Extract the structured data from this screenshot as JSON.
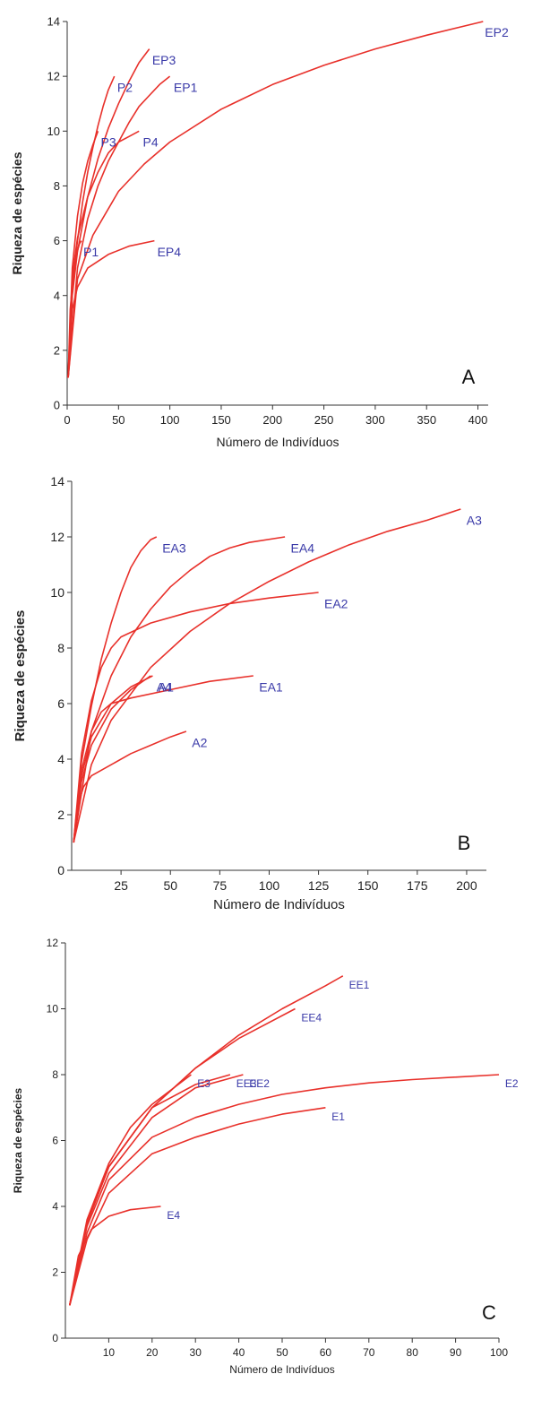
{
  "chart_data": [
    {
      "type": "line",
      "panel_letter": "A",
      "xlabel": "Número de Indivíduos",
      "ylabel": "Riqueza de espécies",
      "xlim": [
        0,
        410
      ],
      "ylim": [
        0,
        14
      ],
      "xticks": [
        0,
        50,
        100,
        150,
        200,
        250,
        300,
        350,
        400
      ],
      "yticks": [
        0,
        2,
        4,
        6,
        8,
        10,
        12,
        14
      ],
      "line_color": "#e8302a",
      "label_color": "#3a3aa8",
      "series": [
        {
          "name": "EP2",
          "points": [
            [
              1,
              1
            ],
            [
              10,
              4.6
            ],
            [
              25,
              6.2
            ],
            [
              50,
              7.8
            ],
            [
              75,
              8.8
            ],
            [
              100,
              9.6
            ],
            [
              150,
              10.8
            ],
            [
              200,
              11.7
            ],
            [
              250,
              12.4
            ],
            [
              300,
              13.0
            ],
            [
              350,
              13.5
            ],
            [
              405,
              14
            ]
          ]
        },
        {
          "name": "EP3",
          "points": [
            [
              1,
              1
            ],
            [
              5,
              4.0
            ],
            [
              10,
              5.6
            ],
            [
              20,
              7.6
            ],
            [
              30,
              9.0
            ],
            [
              40,
              10.1
            ],
            [
              50,
              11.0
            ],
            [
              60,
              11.8
            ],
            [
              70,
              12.5
            ],
            [
              80,
              13
            ]
          ]
        },
        {
          "name": "P2",
          "points": [
            [
              1,
              1
            ],
            [
              5,
              4.2
            ],
            [
              10,
              6.0
            ],
            [
              15,
              7.4
            ],
            [
              20,
              8.5
            ],
            [
              25,
              9.4
            ],
            [
              30,
              10.2
            ],
            [
              35,
              10.9
            ],
            [
              40,
              11.5
            ],
            [
              46,
              12
            ]
          ]
        },
        {
          "name": "EP1",
          "points": [
            [
              1,
              1
            ],
            [
              10,
              5.0
            ],
            [
              20,
              6.8
            ],
            [
              30,
              8.0
            ],
            [
              40,
              8.9
            ],
            [
              50,
              9.6
            ],
            [
              60,
              10.3
            ],
            [
              70,
              10.9
            ],
            [
              80,
              11.3
            ],
            [
              90,
              11.7
            ],
            [
              100,
              12
            ]
          ]
        },
        {
          "name": "P3",
          "points": [
            [
              1,
              1
            ],
            [
              5,
              5.0
            ],
            [
              10,
              6.9
            ],
            [
              15,
              8.1
            ],
            [
              20,
              8.9
            ],
            [
              25,
              9.5
            ],
            [
              30,
              10
            ]
          ]
        },
        {
          "name": "P4",
          "points": [
            [
              1,
              1
            ],
            [
              5,
              4.7
            ],
            [
              10,
              6.1
            ],
            [
              20,
              7.6
            ],
            [
              30,
              8.5
            ],
            [
              40,
              9.2
            ],
            [
              50,
              9.6
            ],
            [
              60,
              9.8
            ],
            [
              70,
              10
            ]
          ]
        },
        {
          "name": "EP4",
          "points": [
            [
              1,
              1
            ],
            [
              5,
              3.5
            ],
            [
              10,
              4.3
            ],
            [
              20,
              5.0
            ],
            [
              40,
              5.5
            ],
            [
              60,
              5.8
            ],
            [
              85,
              6
            ]
          ]
        },
        {
          "name": "P1",
          "points": [
            [
              1,
              1
            ],
            [
              3,
              3.5
            ],
            [
              6,
              4.8
            ],
            [
              9,
              5.5
            ],
            [
              12,
              5.9
            ],
            [
              14,
              6
            ]
          ]
        }
      ],
      "labels": [
        {
          "text": "EP2",
          "x": 405,
          "y": 13.6
        },
        {
          "text": "EP3",
          "x": 81,
          "y": 12.6
        },
        {
          "text": "P2",
          "x": 47,
          "y": 11.6
        },
        {
          "text": "EP1",
          "x": 102,
          "y": 11.6
        },
        {
          "text": "P3",
          "x": 31,
          "y": 9.6
        },
        {
          "text": "P4",
          "x": 72,
          "y": 9.6
        },
        {
          "text": "EP4",
          "x": 86,
          "y": 5.6
        },
        {
          "text": "P1",
          "x": 14,
          "y": 5.6
        }
      ]
    },
    {
      "type": "line",
      "panel_letter": "B",
      "xlabel": "Número de Indivíduos",
      "ylabel": "Riqueza de espécies",
      "xlim": [
        0,
        210
      ],
      "ylim": [
        0,
        14
      ],
      "xticks": [
        25,
        50,
        75,
        100,
        125,
        150,
        175,
        200
      ],
      "yticks": [
        0,
        2,
        4,
        6,
        8,
        10,
        12,
        14
      ],
      "line_color": "#e8302a",
      "label_color": "#3a3aa8",
      "series": [
        {
          "name": "A3",
          "points": [
            [
              1,
              1
            ],
            [
              10,
              3.8
            ],
            [
              20,
              5.4
            ],
            [
              40,
              7.3
            ],
            [
              60,
              8.6
            ],
            [
              80,
              9.6
            ],
            [
              100,
              10.4
            ],
            [
              120,
              11.1
            ],
            [
              140,
              11.7
            ],
            [
              160,
              12.2
            ],
            [
              180,
              12.6
            ],
            [
              197,
              13
            ]
          ]
        },
        {
          "name": "EA3",
          "points": [
            [
              1,
              1
            ],
            [
              5,
              3.9
            ],
            [
              10,
              5.9
            ],
            [
              15,
              7.6
            ],
            [
              20,
              8.9
            ],
            [
              25,
              10.0
            ],
            [
              30,
              10.9
            ],
            [
              35,
              11.5
            ],
            [
              40,
              11.9
            ],
            [
              43,
              12
            ]
          ]
        },
        {
          "name": "EA4",
          "points": [
            [
              1,
              1
            ],
            [
              10,
              5.0
            ],
            [
              20,
              7.0
            ],
            [
              30,
              8.4
            ],
            [
              40,
              9.4
            ],
            [
              50,
              10.2
            ],
            [
              60,
              10.8
            ],
            [
              70,
              11.3
            ],
            [
              80,
              11.6
            ],
            [
              90,
              11.8
            ],
            [
              108,
              12
            ]
          ]
        },
        {
          "name": "EA2",
          "points": [
            [
              1,
              1
            ],
            [
              5,
              4.2
            ],
            [
              10,
              6.1
            ],
            [
              15,
              7.3
            ],
            [
              20,
              8.0
            ],
            [
              25,
              8.4
            ],
            [
              40,
              8.9
            ],
            [
              60,
              9.3
            ],
            [
              80,
              9.6
            ],
            [
              100,
              9.8
            ],
            [
              125,
              10
            ]
          ]
        },
        {
          "name": "A1",
          "points": [
            [
              1,
              1
            ],
            [
              5,
              3.2
            ],
            [
              10,
              4.5
            ],
            [
              20,
              5.8
            ],
            [
              30,
              6.5
            ],
            [
              40,
              7
            ]
          ]
        },
        {
          "name": "A4",
          "points": [
            [
              1,
              1
            ],
            [
              5,
              3.4
            ],
            [
              10,
              4.8
            ],
            [
              20,
              6.0
            ],
            [
              30,
              6.6
            ],
            [
              41,
              7
            ]
          ]
        },
        {
          "name": "EA1",
          "points": [
            [
              1,
              1
            ],
            [
              5,
              3.6
            ],
            [
              10,
              5.0
            ],
            [
              15,
              5.7
            ],
            [
              20,
              6.0
            ],
            [
              30,
              6.2
            ],
            [
              50,
              6.5
            ],
            [
              70,
              6.8
            ],
            [
              92,
              7
            ]
          ]
        },
        {
          "name": "A2",
          "points": [
            [
              1,
              1
            ],
            [
              3,
              2.3
            ],
            [
              6,
              3.0
            ],
            [
              10,
              3.4
            ],
            [
              20,
              3.8
            ],
            [
              30,
              4.2
            ],
            [
              40,
              4.5
            ],
            [
              50,
              4.8
            ],
            [
              58,
              5
            ]
          ]
        }
      ],
      "labels": [
        {
          "text": "A3",
          "x": 199,
          "y": 12.6
        },
        {
          "text": "EA3",
          "x": 45,
          "y": 11.6
        },
        {
          "text": "EA4",
          "x": 110,
          "y": 11.6
        },
        {
          "text": "EA2",
          "x": 127,
          "y": 9.6
        },
        {
          "text": "A4",
          "x": 42,
          "y": 6.6
        },
        {
          "text": "A1",
          "x": 43,
          "y": 6.6
        },
        {
          "text": "EA1",
          "x": 94,
          "y": 6.6
        },
        {
          "text": "A2",
          "x": 60,
          "y": 4.6
        }
      ]
    },
    {
      "type": "line",
      "panel_letter": "C",
      "xlabel": "Número de Indivíduos",
      "ylabel": "Riqueza de espécies",
      "xlim": [
        0,
        100
      ],
      "ylim": [
        0,
        12
      ],
      "xticks": [
        10,
        20,
        30,
        40,
        50,
        60,
        70,
        80,
        90,
        100
      ],
      "yticks": [
        0,
        2,
        4,
        6,
        8,
        10,
        12
      ],
      "line_color": "#e8302a",
      "label_color": "#3a3aa8",
      "series": [
        {
          "name": "E2",
          "points": [
            [
              1,
              1
            ],
            [
              5,
              3.2
            ],
            [
              10,
              4.8
            ],
            [
              20,
              6.1
            ],
            [
              30,
              6.7
            ],
            [
              40,
              7.1
            ],
            [
              50,
              7.4
            ],
            [
              60,
              7.6
            ],
            [
              70,
              7.75
            ],
            [
              80,
              7.85
            ],
            [
              100,
              8
            ]
          ]
        },
        {
          "name": "EE1",
          "points": [
            [
              1,
              1
            ],
            [
              5,
              3.5
            ],
            [
              10,
              5.2
            ],
            [
              20,
              7.0
            ],
            [
              30,
              8.2
            ],
            [
              40,
              9.2
            ],
            [
              50,
              10.0
            ],
            [
              60,
              10.7
            ],
            [
              64,
              11
            ]
          ]
        },
        {
          "name": "EE4",
          "points": [
            [
              1,
              1
            ],
            [
              5,
              3.5
            ],
            [
              10,
              5.2
            ],
            [
              20,
              7.0
            ],
            [
              30,
              8.2
            ],
            [
              40,
              9.1
            ],
            [
              53,
              10
            ]
          ]
        },
        {
          "name": "E1",
          "points": [
            [
              1,
              1
            ],
            [
              5,
              3.0
            ],
            [
              10,
              4.4
            ],
            [
              20,
              5.6
            ],
            [
              30,
              6.1
            ],
            [
              40,
              6.5
            ],
            [
              50,
              6.8
            ],
            [
              60,
              7
            ]
          ]
        },
        {
          "name": "E3",
          "points": [
            [
              1,
              1
            ],
            [
              5,
              3.6
            ],
            [
              10,
              5.3
            ],
            [
              15,
              6.4
            ],
            [
              20,
              7.1
            ],
            [
              25,
              7.6
            ],
            [
              29,
              8
            ]
          ]
        },
        {
          "name": "EE3",
          "points": [
            [
              1,
              1
            ],
            [
              5,
              3.5
            ],
            [
              10,
              5.2
            ],
            [
              20,
              7.0
            ],
            [
              30,
              7.7
            ],
            [
              38,
              8
            ]
          ]
        },
        {
          "name": "EE2",
          "points": [
            [
              1,
              1
            ],
            [
              5,
              3.4
            ],
            [
              10,
              5.0
            ],
            [
              20,
              6.7
            ],
            [
              30,
              7.6
            ],
            [
              41,
              8
            ]
          ]
        },
        {
          "name": "E4",
          "points": [
            [
              1,
              1
            ],
            [
              3,
              2.5
            ],
            [
              6,
              3.3
            ],
            [
              10,
              3.7
            ],
            [
              15,
              3.9
            ],
            [
              22,
              4
            ]
          ]
        }
      ],
      "labels": [
        {
          "text": "EE1",
          "x": 65,
          "y": 10.75
        },
        {
          "text": "EE4",
          "x": 54,
          "y": 9.75
        },
        {
          "text": "E3",
          "x": 30,
          "y": 7.75
        },
        {
          "text": "EE3",
          "x": 39,
          "y": 7.75
        },
        {
          "text": "EE2",
          "x": 42,
          "y": 7.75
        },
        {
          "text": "E2",
          "x": 101,
          "y": 7.75
        },
        {
          "text": "E1",
          "x": 61,
          "y": 6.75
        },
        {
          "text": "E4",
          "x": 23,
          "y": 3.75
        }
      ]
    }
  ]
}
